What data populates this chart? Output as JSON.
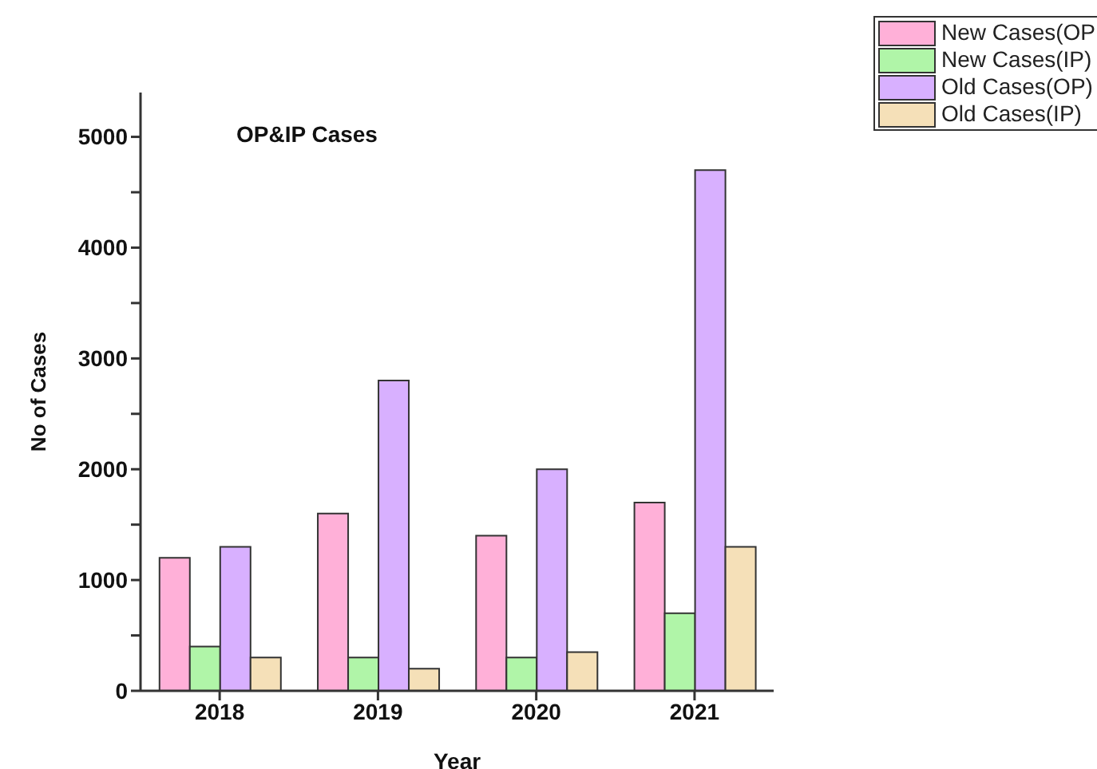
{
  "chart_data": {
    "type": "bar",
    "title": "OP&IP Cases",
    "xlabel": "Year",
    "ylabel": "No of Cases",
    "categories": [
      "2018",
      "2019",
      "2020",
      "2021"
    ],
    "series": [
      {
        "name": "New Cases(OP",
        "color": "#ffb0d8",
        "values": [
          1200,
          1600,
          1400,
          1700
        ]
      },
      {
        "name": "New Cases(IP)",
        "color": "#b0f5a8",
        "values": [
          400,
          300,
          300,
          700
        ]
      },
      {
        "name": "Old Cases(OP)",
        "color": "#d8b0ff",
        "values": [
          1300,
          2800,
          2000,
          4700
        ]
      },
      {
        "name": "Old Cases(IP)",
        "color": "#f5e0b8",
        "values": [
          300,
          200,
          350,
          1300
        ]
      }
    ],
    "ylim": [
      0,
      5400
    ],
    "yticks": [
      0,
      {
        "value": 500,
        "label": null
      },
      1000,
      {
        "value": 1500,
        "label": null
      },
      2000,
      {
        "value": 2500,
        "label": null
      },
      3000,
      {
        "value": 3500,
        "label": null
      },
      4000,
      {
        "value": 4500,
        "label": null
      },
      5000
    ],
    "grid": false,
    "legend": "top right"
  }
}
